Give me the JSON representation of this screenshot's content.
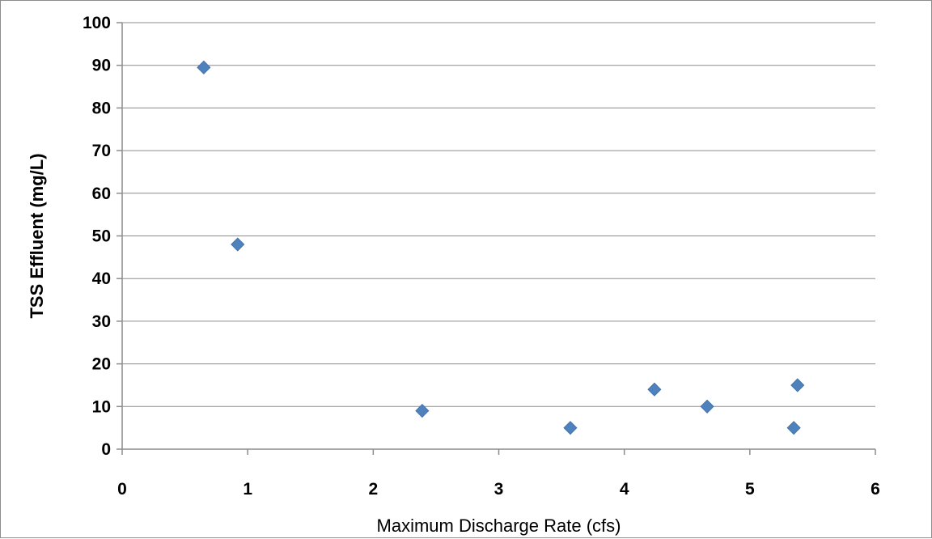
{
  "chart_data": {
    "type": "scatter",
    "title": "",
    "xlabel": "Maximum Discharge Rate (cfs)",
    "ylabel": "TSS Effluent (mg/L)",
    "xlim": [
      0,
      6
    ],
    "ylim": [
      0,
      100
    ],
    "x_ticks": [
      0,
      1,
      2,
      3,
      4,
      5,
      6
    ],
    "y_ticks": [
      0,
      10,
      20,
      30,
      40,
      50,
      60,
      70,
      80,
      90,
      100
    ],
    "grid": "horizontal",
    "legend": "none",
    "marker": "diamond",
    "colors": {
      "marker": "#4f81bd",
      "grid": "#8c8c8c",
      "axis": "#8c8c8c"
    },
    "series": [
      {
        "points": [
          {
            "x": 0.65,
            "y": 89.5
          },
          {
            "x": 0.92,
            "y": 48
          },
          {
            "x": 2.39,
            "y": 9
          },
          {
            "x": 3.57,
            "y": 5
          },
          {
            "x": 4.24,
            "y": 14
          },
          {
            "x": 4.66,
            "y": 10
          },
          {
            "x": 5.35,
            "y": 5
          },
          {
            "x": 5.38,
            "y": 15
          }
        ]
      }
    ]
  }
}
